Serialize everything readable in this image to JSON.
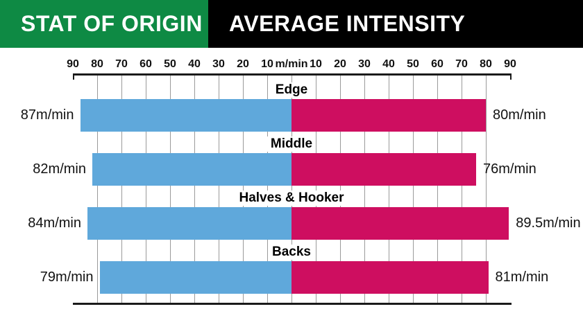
{
  "header": {
    "brand": "STAT OF ORIGIN",
    "title": "AVERAGE INTENSITY",
    "brand_bg": "#0e8a44",
    "title_bg": "#000000",
    "text_color": "#ffffff"
  },
  "chart_data": {
    "type": "bar",
    "subtype": "diverging-horizontal-bilateral",
    "title": "AVERAGE INTENSITY",
    "unit": "m/min",
    "categories": [
      "Edge",
      "Middle",
      "Halves & Hooker",
      "Backs"
    ],
    "series": [
      {
        "name": "left",
        "color": "#5fa8db",
        "values": [
          87,
          82,
          84,
          79
        ],
        "labels": [
          "87m/min",
          "82m/min",
          "84m/min",
          "79m/min"
        ]
      },
      {
        "name": "right",
        "color": "#ce0e60",
        "values": [
          80,
          76,
          89.5,
          81
        ],
        "labels": [
          "80m/min",
          "76m/min",
          "89.5m/min",
          "81m/min"
        ]
      }
    ],
    "axis": {
      "center_label": "m/min",
      "left_ticks": [
        "90",
        "80",
        "70",
        "60",
        "50",
        "40",
        "30",
        "20",
        "10"
      ],
      "right_ticks": [
        "10",
        "20",
        "30",
        "40",
        "50",
        "60",
        "70",
        "80",
        "90"
      ],
      "tick_step": 10,
      "max_each_side": 90,
      "grid": true,
      "gridline_color": "#9a9a9a",
      "axisline_color": "#1a1a1a"
    }
  }
}
